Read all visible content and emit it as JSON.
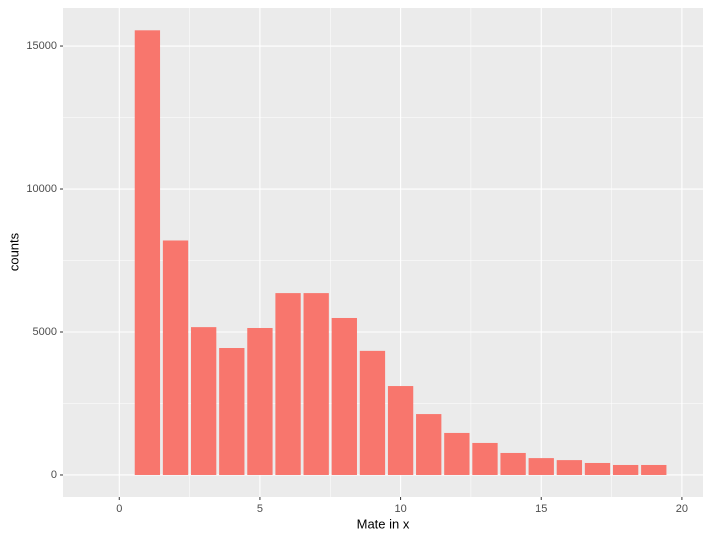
{
  "chart_data": {
    "type": "bar",
    "x": [
      1,
      2,
      3,
      4,
      5,
      6,
      7,
      8,
      9,
      10,
      11,
      12,
      13,
      14,
      15,
      16,
      17,
      18,
      19
    ],
    "values": [
      15550,
      8200,
      5170,
      4440,
      5140,
      6360,
      6360,
      5490,
      4340,
      3110,
      2130,
      1470,
      1120,
      770,
      590,
      520,
      420,
      350,
      350
    ],
    "color": "#F8766D",
    "xlabel": "Mate in x",
    "ylabel": "counts",
    "xlim": [
      -2,
      20.75
    ],
    "xticks": [
      0,
      5,
      10,
      15,
      20
    ],
    "ylim": [
      -770,
      16330
    ],
    "yticks": [
      0,
      5000,
      10000,
      15000
    ],
    "grid": true
  }
}
